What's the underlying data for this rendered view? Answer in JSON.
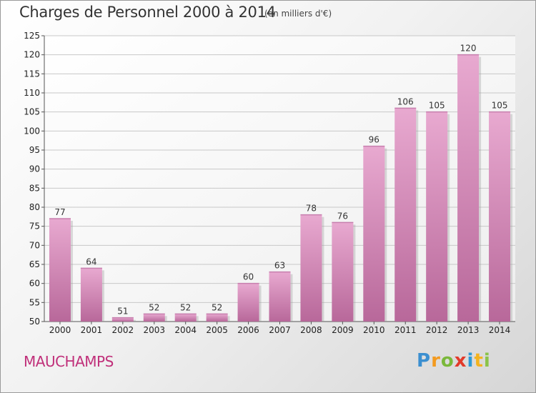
{
  "title": "Charges de Personnel 2000 à 2014",
  "subtitle": "(en milliers d'€)",
  "commune": "MAUCHAMPS",
  "logo": {
    "text": "Proxiti",
    "letters": [
      "P",
      "r",
      "o",
      "x",
      "i",
      "t",
      "i"
    ]
  },
  "colors": {
    "bar_light": "#e8a9d0",
    "bar_dark": "#b8689a",
    "grid": "#c8c8c8",
    "commune": "#c0307a"
  },
  "chart_data": {
    "type": "bar",
    "title": "Charges de Personnel 2000 à 2014",
    "subtitle": "(en milliers d'€)",
    "categories": [
      "2000",
      "2001",
      "2002",
      "2003",
      "2004",
      "2005",
      "2006",
      "2007",
      "2008",
      "2009",
      "2010",
      "2011",
      "2012",
      "2013",
      "2014"
    ],
    "values": [
      77,
      64,
      51,
      52,
      52,
      52,
      60,
      63,
      78,
      76,
      96,
      106,
      105,
      120,
      105
    ],
    "ylim": [
      50,
      125
    ],
    "yticks": [
      50,
      55,
      60,
      65,
      70,
      75,
      80,
      85,
      90,
      95,
      100,
      105,
      110,
      115,
      120,
      125
    ],
    "grid": true,
    "xlabel": "",
    "ylabel": ""
  }
}
